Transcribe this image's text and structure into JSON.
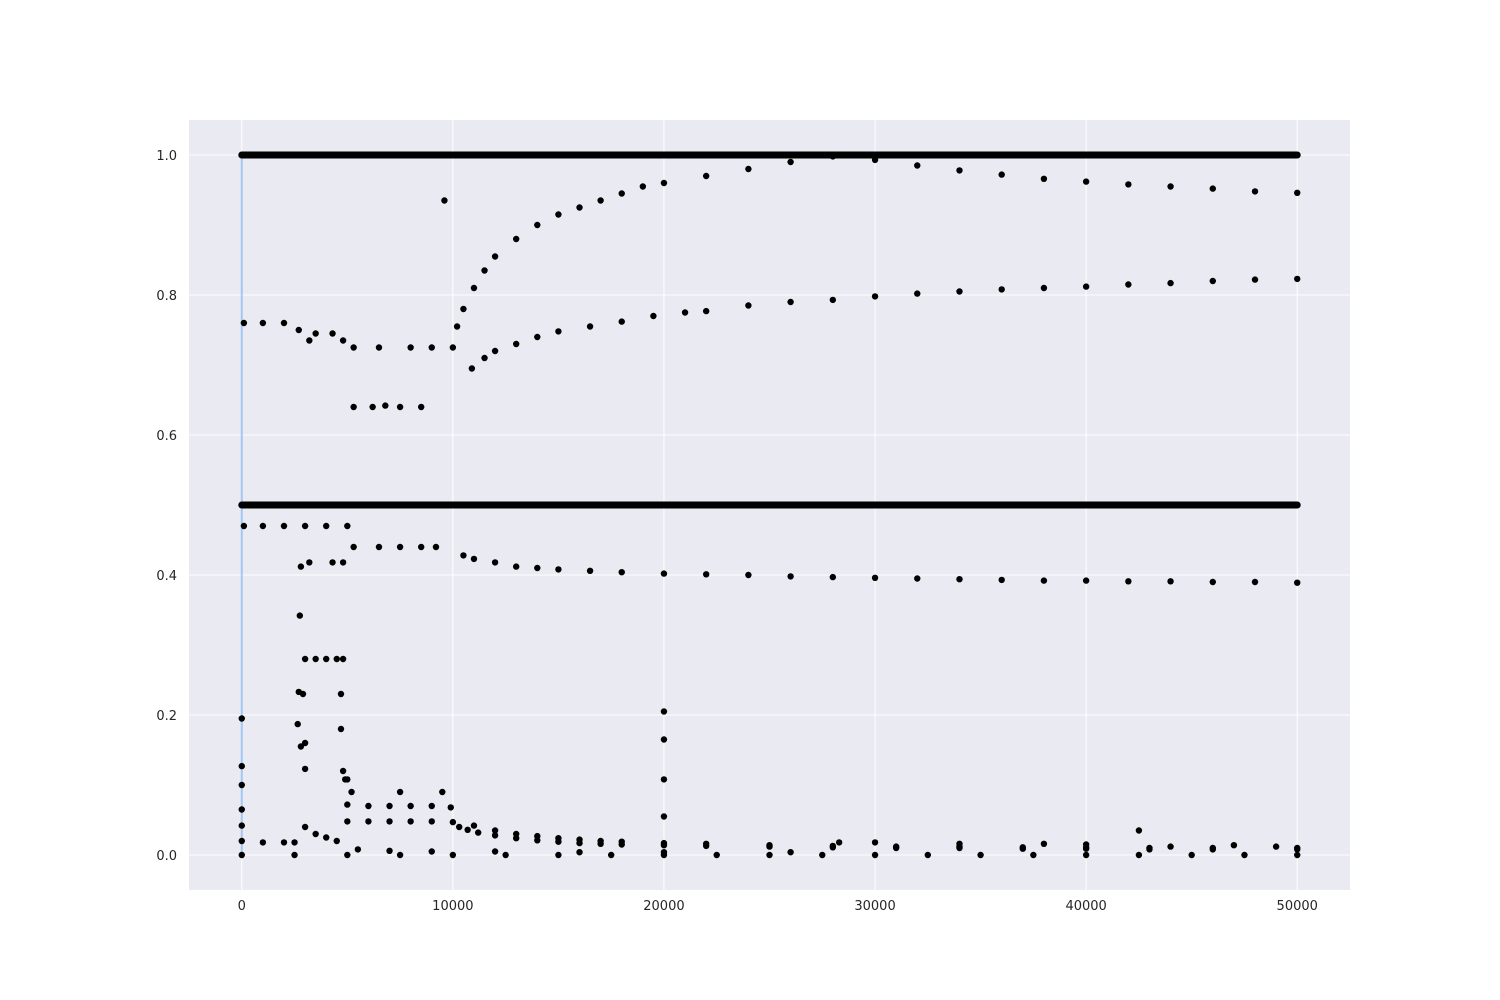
{
  "chart_data": {
    "type": "scatter",
    "title": "",
    "xlabel": "",
    "ylabel": "",
    "xlim": [
      -2500,
      52500
    ],
    "ylim": [
      -0.05,
      1.05
    ],
    "xticks": [
      0,
      10000,
      20000,
      30000,
      40000,
      50000
    ],
    "yticks": [
      0.0,
      0.2,
      0.4,
      0.6,
      0.8,
      1.0
    ],
    "xtick_labels": [
      "0",
      "10000",
      "20000",
      "30000",
      "40000",
      "50000"
    ],
    "ytick_labels": [
      "0.0",
      "0.2",
      "0.4",
      "0.6",
      "0.8",
      "1.0"
    ],
    "grid": true,
    "background_color": "#eaeaf2",
    "marker_color": "#000000",
    "vline": {
      "x": 0,
      "ymin": 0.0,
      "ymax": 1.0,
      "color": "#a1c9f4"
    },
    "series": [
      {
        "values": [
          [
            0,
            1.0
          ],
          [
            5000,
            1.0
          ],
          [
            10000,
            1.0
          ],
          [
            15000,
            1.0
          ],
          [
            20000,
            1.0
          ],
          [
            25000,
            1.0
          ],
          [
            30000,
            1.0
          ],
          [
            35000,
            1.0
          ],
          [
            40000,
            1.0
          ],
          [
            45000,
            1.0
          ],
          [
            50000,
            1.0
          ]
        ]
      },
      {
        "values": [
          [
            0,
            0.5
          ],
          [
            5000,
            0.5
          ],
          [
            10000,
            0.5
          ],
          [
            15000,
            0.5
          ],
          [
            20000,
            0.5
          ],
          [
            25000,
            0.5
          ],
          [
            30000,
            0.5
          ],
          [
            35000,
            0.5
          ],
          [
            40000,
            0.5
          ],
          [
            45000,
            0.5
          ],
          [
            50000,
            0.5
          ]
        ]
      },
      {
        "values": [
          [
            100,
            0.76
          ],
          [
            1000,
            0.76
          ],
          [
            2000,
            0.76
          ],
          [
            2700,
            0.75
          ],
          [
            3200,
            0.735
          ],
          [
            3500,
            0.745
          ],
          [
            4300,
            0.745
          ],
          [
            4800,
            0.735
          ],
          [
            5300,
            0.725
          ],
          [
            6500,
            0.725
          ],
          [
            8000,
            0.725
          ],
          [
            9000,
            0.725
          ],
          [
            10000,
            0.725
          ],
          [
            10200,
            0.755
          ],
          [
            10500,
            0.78
          ],
          [
            11000,
            0.81
          ],
          [
            11500,
            0.835
          ],
          [
            12000,
            0.855
          ],
          [
            13000,
            0.88
          ],
          [
            14000,
            0.9
          ],
          [
            15000,
            0.915
          ],
          [
            16000,
            0.925
          ],
          [
            17000,
            0.935
          ],
          [
            18000,
            0.945
          ],
          [
            19000,
            0.955
          ],
          [
            20000,
            0.96
          ],
          [
            22000,
            0.97
          ],
          [
            24000,
            0.98
          ],
          [
            26000,
            0.99
          ],
          [
            28000,
            0.998
          ],
          [
            30000,
            0.993
          ],
          [
            32000,
            0.985
          ],
          [
            34000,
            0.978
          ],
          [
            36000,
            0.972
          ],
          [
            38000,
            0.966
          ],
          [
            40000,
            0.962
          ],
          [
            42000,
            0.958
          ],
          [
            44000,
            0.955
          ],
          [
            46000,
            0.952
          ],
          [
            48000,
            0.948
          ],
          [
            50000,
            0.946
          ]
        ]
      },
      {
        "values": [
          [
            5300,
            0.64
          ],
          [
            6200,
            0.64
          ],
          [
            6800,
            0.642
          ],
          [
            7500,
            0.64
          ],
          [
            8500,
            0.64
          ],
          [
            9600,
            0.935
          ],
          [
            10900,
            0.695
          ],
          [
            11500,
            0.71
          ],
          [
            12000,
            0.72
          ],
          [
            13000,
            0.73
          ],
          [
            14000,
            0.74
          ],
          [
            15000,
            0.748
          ],
          [
            16500,
            0.755
          ],
          [
            18000,
            0.762
          ],
          [
            19500,
            0.77
          ],
          [
            21000,
            0.775
          ],
          [
            22000,
            0.777
          ],
          [
            24000,
            0.785
          ],
          [
            26000,
            0.79
          ],
          [
            28000,
            0.793
          ],
          [
            30000,
            0.798
          ],
          [
            32000,
            0.802
          ],
          [
            34000,
            0.805
          ],
          [
            36000,
            0.808
          ],
          [
            38000,
            0.81
          ],
          [
            40000,
            0.812
          ],
          [
            42000,
            0.815
          ],
          [
            44000,
            0.817
          ],
          [
            46000,
            0.82
          ],
          [
            48000,
            0.822
          ],
          [
            50000,
            0.823
          ]
        ]
      },
      {
        "values": [
          [
            100,
            0.47
          ],
          [
            1000,
            0.47
          ],
          [
            2000,
            0.47
          ],
          [
            3000,
            0.47
          ],
          [
            4000,
            0.47
          ],
          [
            5000,
            0.47
          ],
          [
            2800,
            0.412
          ],
          [
            3200,
            0.418
          ],
          [
            4300,
            0.418
          ],
          [
            4800,
            0.418
          ],
          [
            5300,
            0.44
          ],
          [
            6500,
            0.44
          ],
          [
            7500,
            0.44
          ],
          [
            8500,
            0.44
          ],
          [
            9200,
            0.44
          ],
          [
            10500,
            0.428
          ],
          [
            11000,
            0.423
          ],
          [
            12000,
            0.418
          ],
          [
            13000,
            0.412
          ],
          [
            14000,
            0.41
          ],
          [
            15000,
            0.408
          ],
          [
            16500,
            0.406
          ],
          [
            18000,
            0.404
          ],
          [
            20000,
            0.402
          ],
          [
            22000,
            0.401
          ],
          [
            24000,
            0.4
          ],
          [
            26000,
            0.398
          ],
          [
            28000,
            0.397
          ],
          [
            30000,
            0.396
          ],
          [
            32000,
            0.395
          ],
          [
            34000,
            0.394
          ],
          [
            36000,
            0.393
          ],
          [
            38000,
            0.392
          ],
          [
            40000,
            0.392
          ],
          [
            42000,
            0.391
          ],
          [
            44000,
            0.391
          ],
          [
            46000,
            0.39
          ],
          [
            48000,
            0.39
          ],
          [
            50000,
            0.389
          ]
        ]
      },
      {
        "values": [
          [
            0,
            0.195
          ],
          [
            0,
            0.127
          ],
          [
            0,
            0.1
          ],
          [
            0,
            0.065
          ],
          [
            0,
            0.042
          ],
          [
            0,
            0.02
          ],
          [
            2750,
            0.342
          ],
          [
            2700,
            0.233
          ],
          [
            2900,
            0.23
          ],
          [
            2650,
            0.187
          ],
          [
            3000,
            0.16
          ],
          [
            2800,
            0.155
          ],
          [
            3000,
            0.123
          ],
          [
            3000,
            0.28
          ],
          [
            3500,
            0.28
          ],
          [
            4000,
            0.28
          ],
          [
            4500,
            0.28
          ],
          [
            4800,
            0.28
          ],
          [
            4700,
            0.23
          ],
          [
            4700,
            0.18
          ],
          [
            4800,
            0.12
          ],
          [
            4900,
            0.108
          ],
          [
            5000,
            0.108
          ],
          [
            7500,
            0.09
          ],
          [
            9500,
            0.09
          ],
          [
            5200,
            0.09
          ],
          [
            20000,
            0.205
          ],
          [
            20000,
            0.165
          ],
          [
            20000,
            0.108
          ],
          [
            20000,
            0.055
          ],
          [
            42500,
            0.035
          ]
        ]
      },
      {
        "values": [
          [
            5000,
            0.072
          ],
          [
            6000,
            0.07
          ],
          [
            7000,
            0.07
          ],
          [
            8000,
            0.07
          ],
          [
            9000,
            0.07
          ],
          [
            9900,
            0.068
          ],
          [
            5000,
            0.048
          ],
          [
            6000,
            0.048
          ],
          [
            7000,
            0.048
          ],
          [
            8000,
            0.048
          ],
          [
            9000,
            0.048
          ],
          [
            10000,
            0.047
          ],
          [
            10300,
            0.04
          ],
          [
            10700,
            0.036
          ],
          [
            11200,
            0.032
          ],
          [
            12000,
            0.028
          ],
          [
            13000,
            0.024
          ],
          [
            14000,
            0.021
          ],
          [
            15000,
            0.019
          ],
          [
            16000,
            0.017
          ],
          [
            17000,
            0.016
          ],
          [
            18000,
            0.015
          ],
          [
            20000,
            0.014
          ],
          [
            22000,
            0.013
          ],
          [
            25000,
            0.012
          ],
          [
            28000,
            0.011
          ],
          [
            31000,
            0.01
          ],
          [
            34000,
            0.01
          ],
          [
            37000,
            0.009
          ],
          [
            40000,
            0.009
          ],
          [
            43000,
            0.008
          ],
          [
            46000,
            0.008
          ],
          [
            50000,
            0.008
          ],
          [
            11000,
            0.042
          ],
          [
            12000,
            0.035
          ],
          [
            13000,
            0.03
          ],
          [
            14000,
            0.027
          ],
          [
            15000,
            0.024
          ],
          [
            16000,
            0.022
          ],
          [
            17000,
            0.02
          ],
          [
            18000,
            0.019
          ],
          [
            20000,
            0.017
          ],
          [
            22000,
            0.016
          ],
          [
            25000,
            0.014
          ],
          [
            28000,
            0.013
          ],
          [
            31000,
            0.012
          ],
          [
            34000,
            0.012
          ],
          [
            37000,
            0.011
          ],
          [
            40000,
            0.011
          ],
          [
            43000,
            0.01
          ],
          [
            46000,
            0.01
          ],
          [
            50000,
            0.01
          ]
        ]
      },
      {
        "values": [
          [
            0,
            0.0
          ],
          [
            2500,
            0.0
          ],
          [
            5000,
            0.0
          ],
          [
            7500,
            0.0
          ],
          [
            10000,
            0.0
          ],
          [
            12500,
            0.0
          ],
          [
            15000,
            0.0
          ],
          [
            17500,
            0.0
          ],
          [
            20000,
            0.0
          ],
          [
            22500,
            0.0
          ],
          [
            25000,
            0.0
          ],
          [
            27500,
            0.0
          ],
          [
            30000,
            0.0
          ],
          [
            32500,
            0.0
          ],
          [
            35000,
            0.0
          ],
          [
            37500,
            0.0
          ],
          [
            40000,
            0.0
          ],
          [
            42500,
            0.0
          ],
          [
            45000,
            0.0
          ],
          [
            47500,
            0.0
          ],
          [
            50000,
            0.0
          ],
          [
            1000,
            0.018
          ],
          [
            2000,
            0.018
          ],
          [
            2500,
            0.018
          ],
          [
            3000,
            0.04
          ],
          [
            3500,
            0.03
          ],
          [
            4000,
            0.025
          ],
          [
            4500,
            0.02
          ],
          [
            5500,
            0.008
          ],
          [
            7000,
            0.006
          ],
          [
            9000,
            0.005
          ],
          [
            12000,
            0.005
          ],
          [
            16000,
            0.004
          ],
          [
            20000,
            0.004
          ],
          [
            26000,
            0.004
          ],
          [
            28300,
            0.018
          ],
          [
            30000,
            0.018
          ],
          [
            34000,
            0.016
          ],
          [
            38000,
            0.016
          ],
          [
            40000,
            0.015
          ],
          [
            44000,
            0.012
          ],
          [
            47000,
            0.014
          ],
          [
            49000,
            0.012
          ]
        ]
      }
    ]
  }
}
